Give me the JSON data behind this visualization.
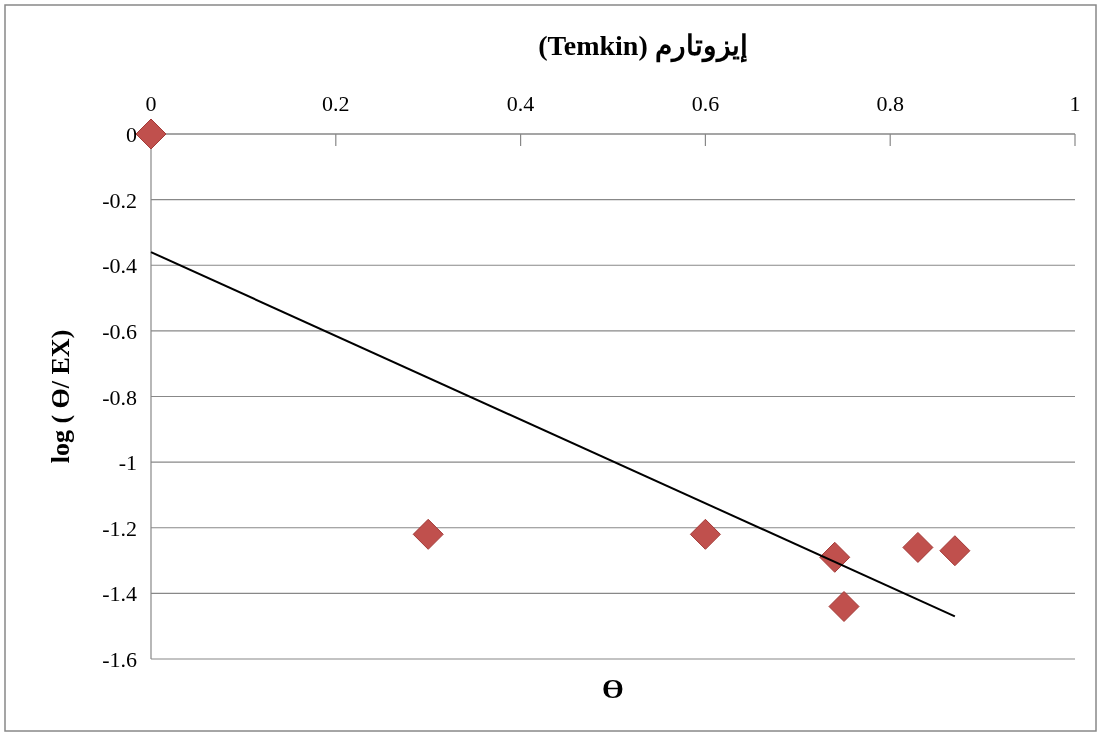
{
  "chart_data": {
    "type": "scatter",
    "title": "إيزوتارم (Temkin)",
    "xlabel": "ϴ",
    "ylabel": "log ( ϴ/ EX)",
    "xlim": [
      0,
      1
    ],
    "xticks": [
      0,
      0.2,
      0.4,
      0.6,
      0.8,
      1
    ],
    "ylim": [
      -1.6,
      0
    ],
    "yticks": [
      -1.6,
      -1.4,
      -1.2,
      -1,
      -0.8,
      -0.6,
      -0.4,
      -0.2,
      0
    ],
    "grid": "y",
    "series": [
      {
        "type": "scatter",
        "marker": "diamond",
        "color": "#c0504d",
        "x": [
          0,
          0.3,
          0.6,
          0.74,
          0.75,
          0.83,
          0.87
        ],
        "values": [
          0,
          -1.22,
          -1.22,
          -1.29,
          -1.44,
          -1.26,
          -1.27
        ]
      },
      {
        "type": "line",
        "marker": "none",
        "color": "#000000",
        "x": [
          0,
          0.87
        ],
        "values": [
          -0.36,
          -1.47
        ]
      }
    ]
  }
}
